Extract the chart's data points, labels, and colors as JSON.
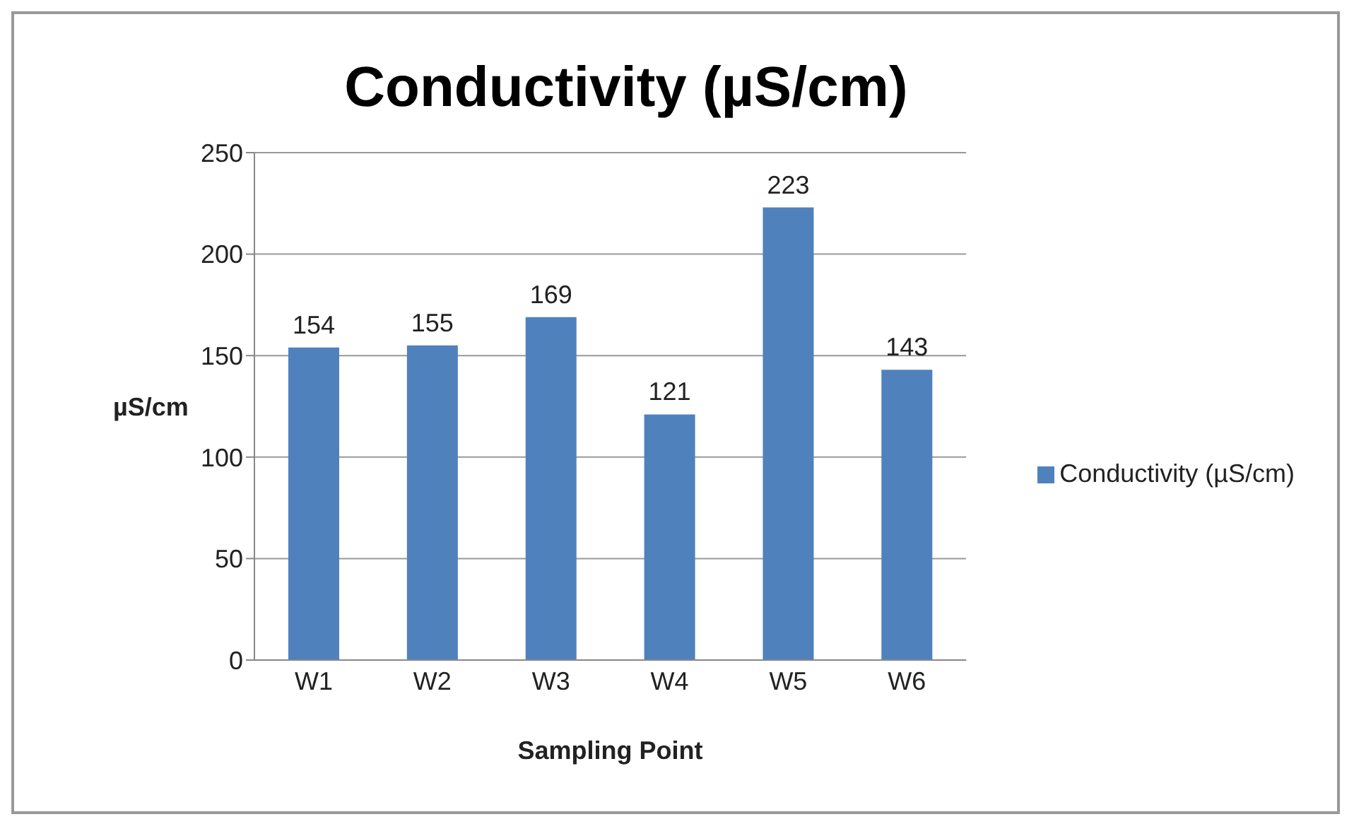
{
  "chart_data": {
    "type": "bar",
    "title": "Conductivity (µS/cm)",
    "xlabel": "Sampling Point",
    "ylabel": "µS/cm",
    "categories": [
      "W1",
      "W2",
      "W3",
      "W4",
      "W5",
      "W6"
    ],
    "series": [
      {
        "name": "Conductivity (µS/cm)",
        "color": "#4f81bd",
        "values": [
          154,
          155,
          169,
          121,
          223,
          143
        ]
      }
    ],
    "ylim": [
      0,
      250
    ],
    "yticks": [
      0,
      50,
      100,
      150,
      200,
      250
    ],
    "grid": "y",
    "legend": "right",
    "data_labels": true
  }
}
